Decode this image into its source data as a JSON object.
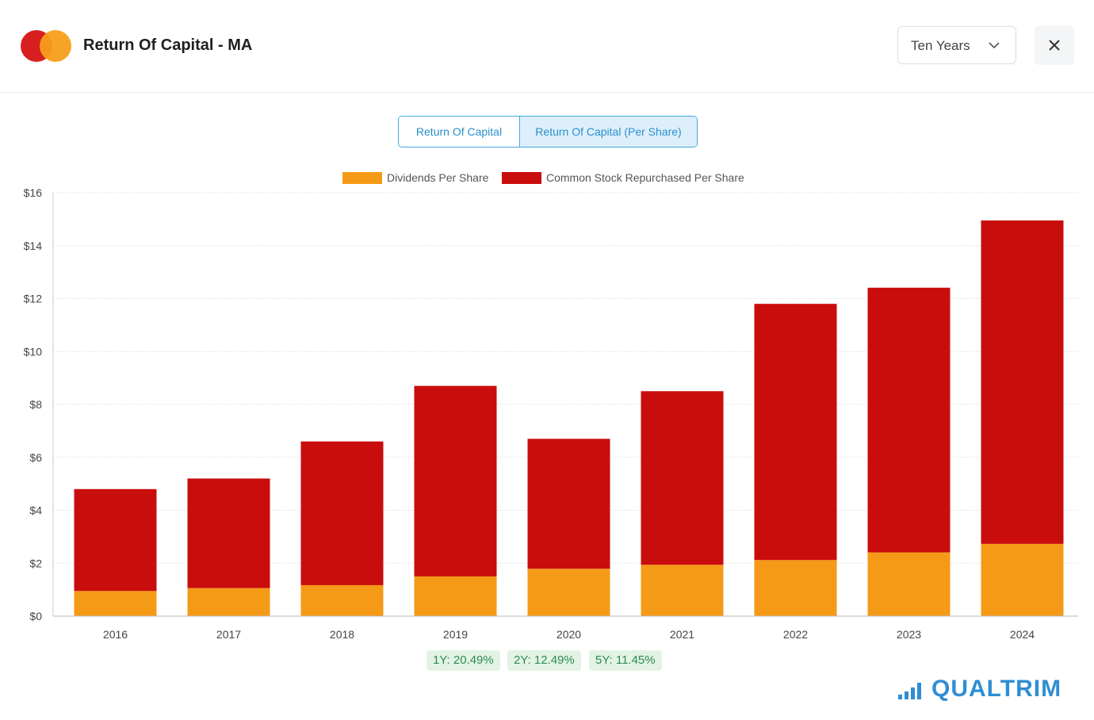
{
  "header": {
    "title": "Return Of Capital - MA",
    "range_select": "Ten Years",
    "icons": {
      "logo": "mastercard-logo",
      "close": "close-icon",
      "dropdown": "chevron-down-icon"
    }
  },
  "toggle": {
    "tabs": [
      {
        "label": "Return Of Capital",
        "active": false
      },
      {
        "label": "Return Of Capital (Per Share)",
        "active": true
      }
    ]
  },
  "chart_data": {
    "type": "bar",
    "stacked": true,
    "categories": [
      "2016",
      "2017",
      "2018",
      "2019",
      "2020",
      "2021",
      "2022",
      "2023",
      "2024"
    ],
    "series": [
      {
        "name": "Dividends Per Share",
        "color": "#f59a17",
        "values": [
          0.95,
          1.06,
          1.17,
          1.5,
          1.79,
          1.94,
          2.12,
          2.41,
          2.73
        ]
      },
      {
        "name": "Common Stock Repurchased Per Share",
        "color": "#c90d0d",
        "values": [
          3.85,
          4.14,
          5.43,
          7.2,
          4.91,
          6.56,
          9.68,
          10.0,
          12.22
        ]
      }
    ],
    "yticks": [
      "$0",
      "$2",
      "$4",
      "$6",
      "$8",
      "$10",
      "$12",
      "$14",
      "$16"
    ],
    "ylim": [
      0,
      16
    ],
    "grid": true,
    "legend_position": "top-center"
  },
  "cagr": [
    "1Y: 20.49%",
    "2Y: 12.49%",
    "5Y: 11.45%"
  ],
  "brand": {
    "name": "QUALTRIM",
    "color": "#2f8ed4"
  }
}
